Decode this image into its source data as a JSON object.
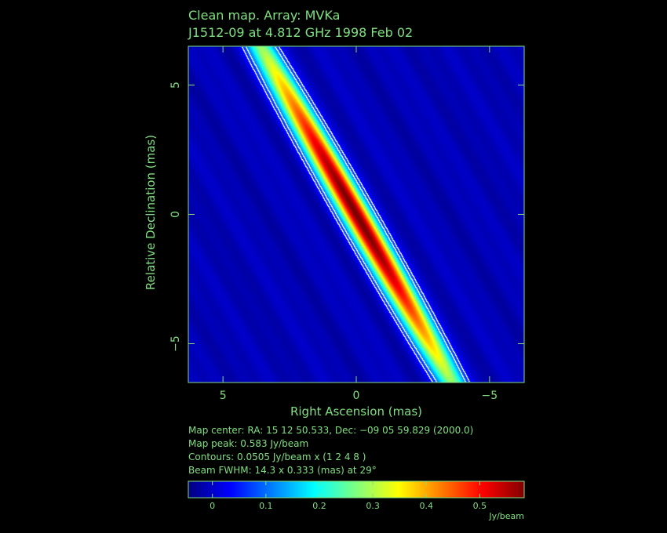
{
  "title_line1": "Clean map.  Array: MVKa",
  "title_line2": "J1512-09 at 4.812 GHz 1998 Feb 02",
  "chart_data": {
    "type": "heatmap",
    "xlabel": "Right Ascension   (mas)",
    "ylabel": "Relative Declination   (mas)",
    "xlim": [
      6.3,
      -6.3
    ],
    "ylim": [
      -6.5,
      6.5
    ],
    "x_ticks": [
      5,
      0,
      -5
    ],
    "x_tick_labels": [
      "5",
      "0",
      "−5"
    ],
    "y_ticks": [
      5,
      0,
      -5
    ],
    "y_tick_labels": [
      "5",
      "0",
      "−5"
    ],
    "colormap": "jet",
    "colorbar": {
      "ticks": [
        0,
        0.1,
        0.2,
        0.3,
        0.4,
        0.5
      ],
      "tick_labels": [
        "0",
        "0.1",
        "0.2",
        "0.3",
        "0.4",
        "0.5"
      ],
      "range": [
        -0.045,
        0.583
      ],
      "unit": "Jy/beam"
    },
    "map_peak": 0.583,
    "contours": [
      0.0505,
      0.101,
      0.202,
      0.404
    ],
    "beam": {
      "major": 14.3,
      "minor": 0.333,
      "pa": 29
    }
  },
  "info": {
    "map_center": "Map center:  RA: 15 12 50.533,  Dec: −09 05 59.829 (2000.0)",
    "map_peak": "Map peak: 0.583 Jy/beam",
    "contours": "Contours: 0.0505 Jy/beam x (1 2 4 8 )",
    "beam": "Beam FWHM: 14.3 x 0.333 (mas) at 29°"
  },
  "colors": {
    "text": "#7fe07f",
    "frame": "#7fe07f",
    "background": "#000000",
    "contour": "#ffffff"
  }
}
